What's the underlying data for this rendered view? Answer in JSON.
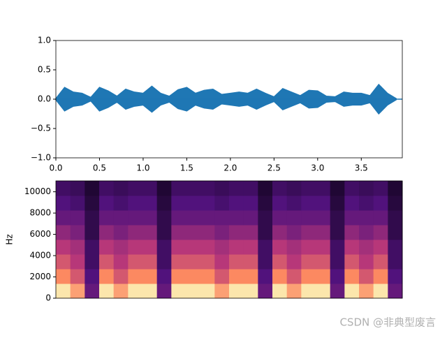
{
  "chart_data": [
    {
      "type": "waveform",
      "color": "#1f77b4",
      "xlim": [
        0,
        3.97
      ],
      "ylim": [
        -1,
        1
      ],
      "xticks": [
        {
          "value": 0,
          "label": "0.0"
        },
        {
          "value": 0.5,
          "label": "0.5"
        },
        {
          "value": 1,
          "label": "1.0"
        },
        {
          "value": 1.5,
          "label": "1.5"
        },
        {
          "value": 2,
          "label": "2.0"
        },
        {
          "value": 2.5,
          "label": "2.5"
        },
        {
          "value": 3,
          "label": "3.0"
        },
        {
          "value": 3.5,
          "label": "3.5"
        }
      ],
      "yticks": [
        {
          "value": -1,
          "label": "−1.0"
        },
        {
          "value": -0.5,
          "label": "−0.5"
        },
        {
          "value": 0,
          "label": "0.0"
        },
        {
          "value": 0.5,
          "label": "0.5"
        },
        {
          "value": 1,
          "label": "1.0"
        }
      ],
      "x": [
        0.0,
        0.1,
        0.2,
        0.3,
        0.4,
        0.5,
        0.6,
        0.7,
        0.8,
        0.9,
        1.0,
        1.1,
        1.2,
        1.3,
        1.4,
        1.5,
        1.6,
        1.7,
        1.8,
        1.9,
        2.0,
        2.1,
        2.2,
        2.3,
        2.4,
        2.5,
        2.6,
        2.7,
        2.8,
        2.9,
        3.0,
        3.1,
        3.2,
        3.3,
        3.4,
        3.5,
        3.6,
        3.7,
        3.8,
        3.9
      ],
      "values": [
        0.01,
        0.2,
        0.12,
        0.1,
        0.03,
        0.2,
        0.14,
        0.05,
        0.17,
        0.12,
        0.1,
        0.22,
        0.1,
        0.05,
        0.16,
        0.2,
        0.1,
        0.15,
        0.17,
        0.08,
        0.1,
        0.12,
        0.1,
        0.17,
        0.1,
        0.04,
        0.18,
        0.12,
        0.06,
        0.15,
        0.14,
        0.05,
        0.04,
        0.12,
        0.1,
        0.1,
        0.06,
        0.25,
        0.1,
        0.01
      ]
    },
    {
      "type": "spectrogram",
      "colormap": "magma",
      "ylabel": "Hz",
      "xlim": [
        0,
        3.97
      ],
      "ylim": [
        0,
        11025
      ],
      "yticks": [
        0,
        2000,
        4000,
        6000,
        8000,
        10000
      ],
      "z": [
        [
          0.95,
          0.8,
          0.3,
          0.95,
          0.8,
          0.95,
          0.95,
          0.3,
          0.95,
          0.95,
          0.95,
          0.8,
          0.95,
          0.95,
          0.3,
          0.95,
          0.8,
          0.95,
          0.95,
          0.3,
          0.95,
          0.8,
          0.95,
          0.3
        ],
        [
          0.75,
          0.6,
          0.25,
          0.75,
          0.6,
          0.75,
          0.75,
          0.25,
          0.75,
          0.75,
          0.75,
          0.6,
          0.75,
          0.75,
          0.25,
          0.75,
          0.6,
          0.75,
          0.75,
          0.25,
          0.75,
          0.6,
          0.75,
          0.25
        ],
        [
          0.6,
          0.5,
          0.2,
          0.6,
          0.5,
          0.6,
          0.6,
          0.2,
          0.6,
          0.6,
          0.6,
          0.5,
          0.6,
          0.6,
          0.2,
          0.6,
          0.5,
          0.6,
          0.6,
          0.2,
          0.6,
          0.5,
          0.6,
          0.2
        ],
        [
          0.5,
          0.45,
          0.2,
          0.5,
          0.45,
          0.5,
          0.5,
          0.2,
          0.5,
          0.5,
          0.5,
          0.45,
          0.5,
          0.5,
          0.2,
          0.5,
          0.45,
          0.5,
          0.5,
          0.2,
          0.5,
          0.45,
          0.5,
          0.2
        ],
        [
          0.4,
          0.35,
          0.15,
          0.4,
          0.35,
          0.4,
          0.4,
          0.15,
          0.4,
          0.4,
          0.4,
          0.35,
          0.4,
          0.4,
          0.15,
          0.4,
          0.35,
          0.4,
          0.4,
          0.15,
          0.4,
          0.35,
          0.4,
          0.15
        ],
        [
          0.3,
          0.3,
          0.15,
          0.3,
          0.3,
          0.3,
          0.3,
          0.15,
          0.3,
          0.3,
          0.3,
          0.3,
          0.3,
          0.3,
          0.15,
          0.3,
          0.3,
          0.3,
          0.3,
          0.15,
          0.3,
          0.3,
          0.3,
          0.15
        ],
        [
          0.25,
          0.22,
          0.12,
          0.25,
          0.22,
          0.25,
          0.25,
          0.12,
          0.25,
          0.25,
          0.25,
          0.22,
          0.25,
          0.25,
          0.12,
          0.25,
          0.22,
          0.25,
          0.25,
          0.12,
          0.25,
          0.22,
          0.25,
          0.12
        ],
        [
          0.2,
          0.18,
          0.1,
          0.2,
          0.18,
          0.2,
          0.2,
          0.1,
          0.2,
          0.2,
          0.2,
          0.18,
          0.2,
          0.2,
          0.1,
          0.2,
          0.18,
          0.2,
          0.2,
          0.1,
          0.2,
          0.18,
          0.2,
          0.1
        ]
      ]
    }
  ],
  "watermark": "CSDN @非典型废言"
}
